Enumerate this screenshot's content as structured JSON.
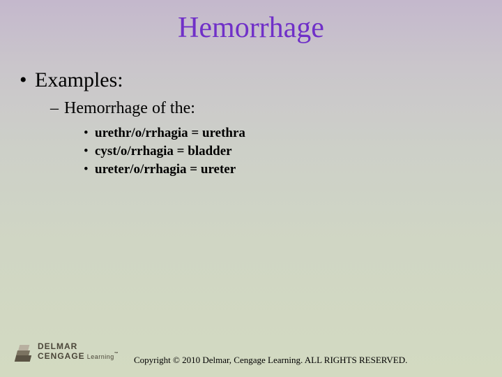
{
  "title": "Hemorrhage",
  "content": {
    "lvl1": "Examples:",
    "lvl2": "Hemorrhage of the:",
    "items": [
      "urethr/o/rrhagia = urethra",
      "cyst/o/rrhagia = bladder",
      "ureter/o/rrhagia = ureter"
    ]
  },
  "footer": {
    "logo_line1_a": "DELMAR",
    "logo_line2_a": "CENGAGE",
    "logo_line2_b": " Learning",
    "tm": "™",
    "copyright": "Copyright © 2010 Delmar, Cengage Learning. ALL RIGHTS RESERVED."
  },
  "colors": {
    "title": "#7030c8",
    "text": "#000000",
    "bg_top": "#c4b8cc",
    "bg_bottom": "#d3dac1",
    "logo": "#5a5344"
  },
  "fonts": {
    "body": "Times New Roman",
    "title_size_pt": 32,
    "lvl1_size_pt": 22,
    "lvl2_size_pt": 18,
    "lvl3_size_pt": 14,
    "copyright_size_pt": 10
  }
}
